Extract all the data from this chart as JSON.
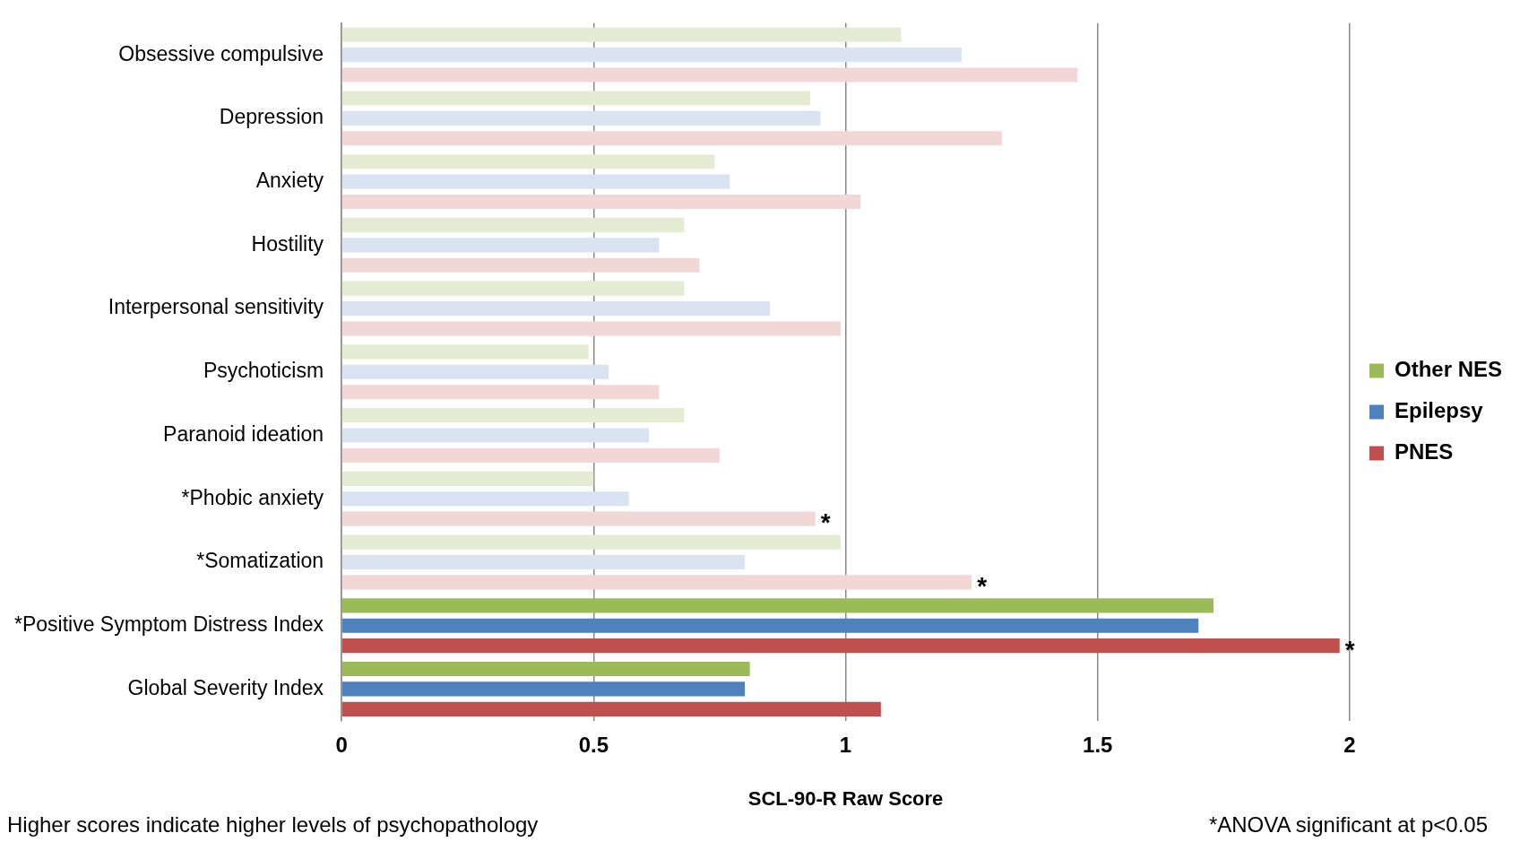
{
  "chart_data": {
    "type": "bar",
    "orientation": "horizontal",
    "xlabel": "SCL-90-R Raw Score",
    "categories": [
      "Obsessive compulsive",
      "Depression",
      "Anxiety",
      "Hostility",
      "Interpersonal sensitivity",
      "Psychoticism",
      "Paranoid ideation",
      "*Phobic anxiety",
      "*Somatization",
      "*Positive Symptom Distress Index",
      "Global Severity Index"
    ],
    "series": [
      {
        "name": "Other NES",
        "color": "#9bbb59",
        "colors": [
          "#e4edd4",
          "#e4edd4",
          "#e4edd4",
          "#e4edd4",
          "#e4edd4",
          "#e4edd4",
          "#e4edd4",
          "#e4edd4",
          "#e4edd4",
          "#9bbb59",
          "#9bbb59"
        ],
        "values": [
          1.11,
          0.93,
          0.74,
          0.68,
          0.68,
          0.49,
          0.68,
          0.5,
          0.99,
          1.73,
          0.81
        ]
      },
      {
        "name": "Epilepsy",
        "color": "#4f81bd",
        "colors": [
          "#d9e3f1",
          "#d9e3f1",
          "#d9e3f1",
          "#d9e3f1",
          "#d9e3f1",
          "#d9e3f1",
          "#d9e3f1",
          "#d9e3f1",
          "#d9e3f1",
          "#4f81bd",
          "#4f81bd"
        ],
        "values": [
          1.23,
          0.95,
          0.77,
          0.63,
          0.85,
          0.53,
          0.61,
          0.57,
          0.8,
          1.7,
          0.8
        ]
      },
      {
        "name": "PNES",
        "color": "#c0504d",
        "colors": [
          "#f1d8d7",
          "#f1d8d7",
          "#f1d8d7",
          "#f1d8d7",
          "#f1d8d7",
          "#f1d8d7",
          "#f1d8d7",
          "#f1d8d7",
          "#f1d8d7",
          "#c0504d",
          "#c0504d"
        ],
        "values": [
          1.46,
          1.31,
          1.03,
          0.71,
          0.99,
          0.63,
          0.75,
          0.94,
          1.25,
          1.98,
          1.07
        ],
        "value_labels": [
          null,
          null,
          null,
          null,
          null,
          null,
          null,
          "*",
          "*",
          "*",
          null
        ]
      }
    ],
    "xlim": [
      0,
      2
    ],
    "xticks": [
      0,
      0.5,
      1,
      1.5,
      2
    ],
    "grid": "x",
    "legend": "right",
    "annotations": [
      "Higher scores indicate higher levels of psychopathology",
      "*ANOVA significant at p<0.05"
    ]
  }
}
